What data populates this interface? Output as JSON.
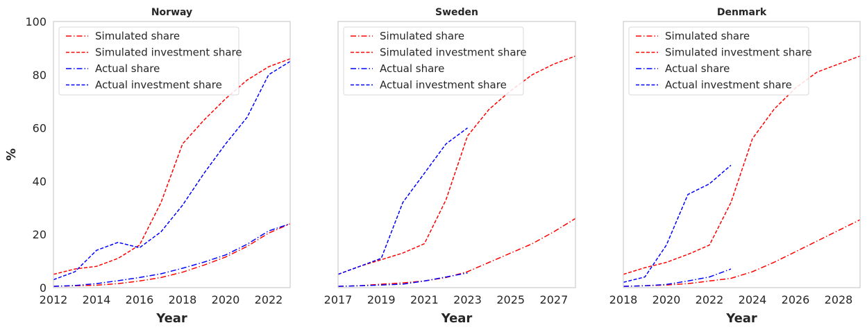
{
  "chart_data": [
    {
      "type": "line",
      "title": "Norway",
      "xlabel": "Year",
      "ylabel": "%",
      "xlim": [
        2012,
        2023
      ],
      "ylim": [
        0,
        100
      ],
      "xticks": [
        2012,
        2014,
        2016,
        2018,
        2020,
        2022
      ],
      "yticks": [
        0,
        20,
        40,
        60,
        80,
        100
      ],
      "legend": "upper-left",
      "grid": false,
      "series": [
        {
          "name": "Simulated share",
          "color": "#ff0000",
          "style": "dashdot",
          "x": [
            2012,
            2013,
            2014,
            2015,
            2016,
            2017,
            2018,
            2019,
            2020,
            2021,
            2022,
            2023
          ],
          "y": [
            0.5,
            0.7,
            0.9,
            1.5,
            2.5,
            3.8,
            5.8,
            8.5,
            11.5,
            15.5,
            20.5,
            24.0
          ]
        },
        {
          "name": "Simulated investment share",
          "color": "#ff0000",
          "style": "dashed",
          "x": [
            2012,
            2013,
            2014,
            2015,
            2016,
            2017,
            2018,
            2019,
            2020,
            2021,
            2022,
            2023
          ],
          "y": [
            5,
            7,
            8,
            11,
            16,
            32,
            54,
            63,
            71,
            78,
            83,
            86
          ]
        },
        {
          "name": "Actual share",
          "color": "#0000ff",
          "style": "dashdot",
          "x": [
            2012,
            2013,
            2014,
            2015,
            2016,
            2017,
            2018,
            2019,
            2020,
            2021,
            2022,
            2023
          ],
          "y": [
            0.5,
            0.8,
            1.5,
            2.6,
            3.8,
            5.2,
            7.3,
            9.6,
            12.3,
            16.3,
            21.3,
            24.0
          ]
        },
        {
          "name": "Actual investment share",
          "color": "#0000ff",
          "style": "dashed",
          "x": [
            2012,
            2013,
            2014,
            2015,
            2016,
            2017,
            2018,
            2019,
            2020,
            2021,
            2022,
            2023
          ],
          "y": [
            3,
            6,
            14,
            17,
            15,
            21,
            31,
            43,
            54,
            64,
            80,
            85
          ]
        }
      ]
    },
    {
      "type": "line",
      "title": "Sweden",
      "xlabel": "Year",
      "ylabel": "",
      "xlim": [
        2017,
        2028
      ],
      "ylim": [
        0,
        100
      ],
      "xticks": [
        2017,
        2019,
        2021,
        2023,
        2025,
        2027
      ],
      "yticks": [
        0,
        20,
        40,
        60,
        80,
        100
      ],
      "legend": "upper-left",
      "grid": false,
      "series": [
        {
          "name": "Simulated share",
          "color": "#ff0000",
          "style": "dashdot",
          "x": [
            2017,
            2018,
            2019,
            2020,
            2021,
            2022,
            2023,
            2024,
            2025,
            2026,
            2027,
            2028
          ],
          "y": [
            0.5,
            0.7,
            1.3,
            1.8,
            2.5,
            3.8,
            6.0,
            9.5,
            13.0,
            16.5,
            21.0,
            26.0
          ]
        },
        {
          "name": "Simulated investment share",
          "color": "#ff0000",
          "style": "dashed",
          "x": [
            2017,
            2018,
            2019,
            2020,
            2021,
            2022,
            2023,
            2024,
            2025,
            2026,
            2027,
            2028
          ],
          "y": [
            5,
            8,
            10.5,
            13,
            16.5,
            33,
            57,
            67,
            74,
            80,
            84,
            87
          ]
        },
        {
          "name": "Actual share",
          "color": "#0000ff",
          "style": "dashdot",
          "x": [
            2017,
            2018,
            2019,
            2020,
            2021,
            2022,
            2023
          ],
          "y": [
            0.5,
            0.7,
            1.0,
            1.3,
            2.5,
            4.0,
            5.5
          ]
        },
        {
          "name": "Actual investment share",
          "color": "#0000ff",
          "style": "dashed",
          "x": [
            2017,
            2018,
            2019,
            2020,
            2021,
            2022,
            2023
          ],
          "y": [
            5,
            8,
            11,
            32,
            43,
            54,
            60
          ]
        }
      ]
    },
    {
      "type": "line",
      "title": "Denmark",
      "xlabel": "Year",
      "ylabel": "",
      "xlim": [
        2018,
        2029
      ],
      "ylim": [
        0,
        100
      ],
      "xticks": [
        2018,
        2020,
        2022,
        2024,
        2026,
        2028
      ],
      "yticks": [
        0,
        20,
        40,
        60,
        80,
        100
      ],
      "legend": "upper-left",
      "grid": false,
      "series": [
        {
          "name": "Simulated share",
          "color": "#ff0000",
          "style": "dashdot",
          "x": [
            2018,
            2019,
            2020,
            2021,
            2022,
            2023,
            2024,
            2025,
            2026,
            2027,
            2028,
            2029
          ],
          "y": [
            0.5,
            0.7,
            1.0,
            1.5,
            2.5,
            3.5,
            6.0,
            9.5,
            13.5,
            17.5,
            21.5,
            25.5
          ]
        },
        {
          "name": "Simulated investment share",
          "color": "#ff0000",
          "style": "dashed",
          "x": [
            2018,
            2019,
            2020,
            2021,
            2022,
            2023,
            2024,
            2025,
            2026,
            2027,
            2028,
            2029
          ],
          "y": [
            5,
            7.5,
            9.5,
            12.5,
            16,
            32,
            56,
            67,
            75,
            81,
            84,
            87
          ]
        },
        {
          "name": "Actual share",
          "color": "#0000ff",
          "style": "dashdot",
          "x": [
            2018,
            2019,
            2020,
            2021,
            2022,
            2023
          ],
          "y": [
            0.5,
            0.7,
            1.2,
            2.5,
            4.0,
            7.0
          ]
        },
        {
          "name": "Actual investment share",
          "color": "#0000ff",
          "style": "dashed",
          "x": [
            2018,
            2019,
            2020,
            2021,
            2022,
            2023
          ],
          "y": [
            2,
            4,
            16,
            35,
            39,
            46
          ]
        }
      ]
    }
  ]
}
